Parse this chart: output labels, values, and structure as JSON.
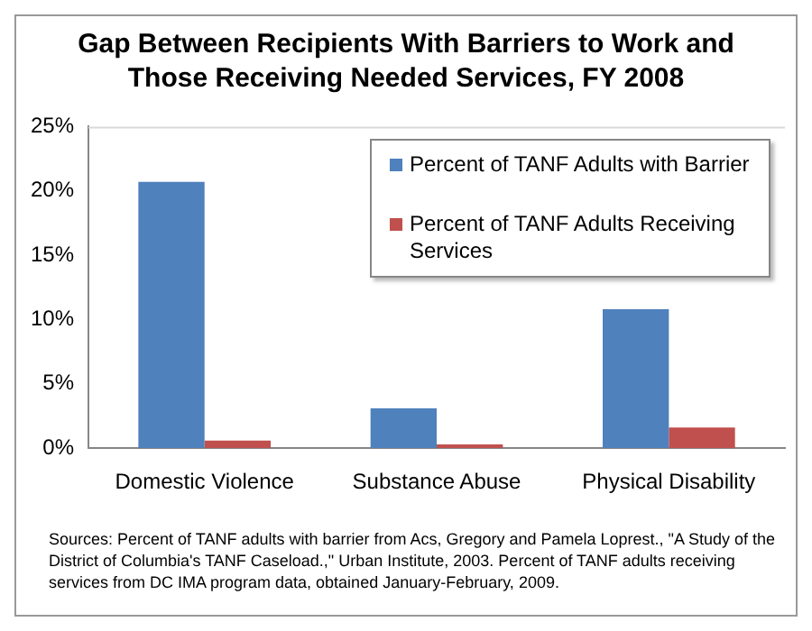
{
  "chart_data": {
    "type": "bar",
    "title": "Gap Between Recipients With Barriers to Work and Those Receiving Needed Services, FY 2008",
    "categories": [
      "Domestic Violence",
      "Substance Abuse",
      "Physical Disability"
    ],
    "series": [
      {
        "name": "Percent of TANF Adults with Barrier",
        "color": "#4f81bd",
        "values": [
          20.7,
          3.1,
          10.8
        ]
      },
      {
        "name": "Percent of TANF Adults Receiving Services",
        "color": "#c0504d",
        "values": [
          0.6,
          0.3,
          1.6
        ]
      }
    ],
    "ylim": [
      0,
      25
    ],
    "yticks": [
      {
        "value": 0,
        "label": "0%"
      },
      {
        "value": 5,
        "label": "5%"
      },
      {
        "value": 10,
        "label": "10%"
      },
      {
        "value": 15,
        "label": "15%"
      },
      {
        "value": 20,
        "label": "20%"
      },
      {
        "value": 25,
        "label": "25%"
      }
    ],
    "grid": false,
    "legend": "top right",
    "annotations": [
      "Sources: Percent of TANF adults with barrier from Acs, Gregory and Pamela Loprest., \"A Study of the District of Columbia's TANF Caseload.,\" Urban Institute, 2003.  Percent of TANF adults receiving services from DC IMA program  data, obtained January-February, 2009."
    ]
  }
}
